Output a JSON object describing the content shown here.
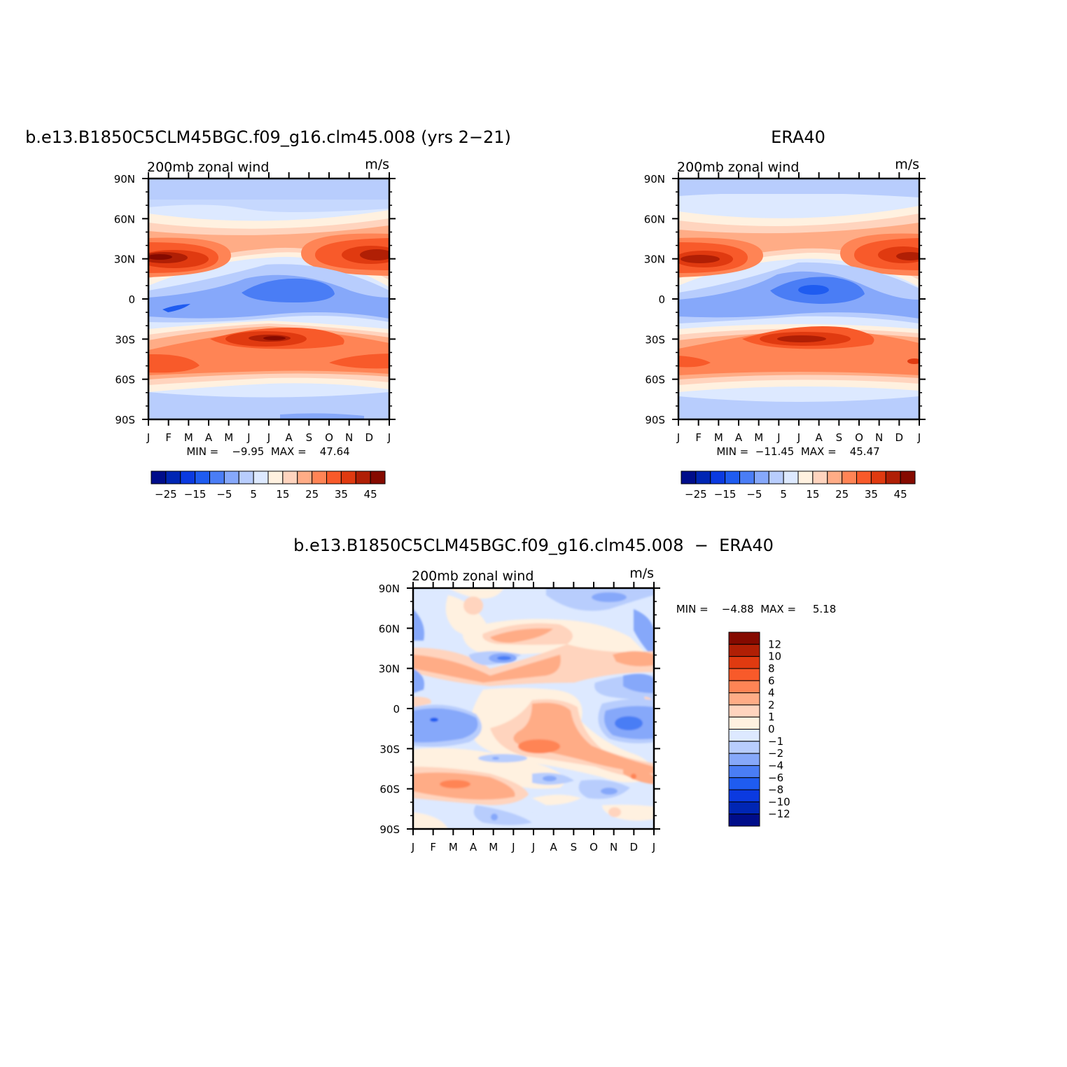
{
  "chart_data": [
    {
      "type": "heatmap",
      "title": "b.e13.B1850C5CLM45BGC.f09_g16.clm45.008 (yrs 2−21)",
      "subtitle_left": "200mb  zonal  wind",
      "subtitle_right": "m/s",
      "x_ticks": [
        "J",
        "F",
        "M",
        "A",
        "M",
        "J",
        "J",
        "A",
        "S",
        "O",
        "N",
        "D",
        "J"
      ],
      "y_ticks": [
        "90N",
        "60N",
        "30N",
        "0",
        "30S",
        "60S",
        "90S"
      ],
      "ylim": [
        -90,
        90
      ],
      "stats_text": "MIN =    −9.95  MAX =    47.64",
      "min": -9.95,
      "max": 47.64,
      "colorbar": {
        "orientation": "horizontal",
        "labels": [
          "−25",
          "−15",
          "−5",
          "5",
          "15",
          "25",
          "35",
          "45"
        ],
        "colors": [
          "#000d8a",
          "#0026b4",
          "#0b3ae0",
          "#1f5cf0",
          "#4a7df5",
          "#86a8fa",
          "#b8cdfd",
          "#dde9ff",
          "#fff1e0",
          "#ffd4be",
          "#ffac86",
          "#ff8455",
          "#f85a2a",
          "#e03a10",
          "#b01f05",
          "#850a00"
        ]
      },
      "features": [
        {
          "kind": "subtropical-jet",
          "hemisphere": "N",
          "months": [
            "J",
            "F",
            "M",
            "D"
          ],
          "lat": 30,
          "peak": 47.64
        },
        {
          "kind": "subtropical-jet",
          "hemisphere": "S",
          "months": [
            "J",
            "J",
            "A"
          ],
          "lat": -30,
          "peak": 45
        },
        {
          "kind": "tropical-easterlies",
          "months": [
            "J",
            "J",
            "A"
          ],
          "lat": 5,
          "min": -9.95
        }
      ]
    },
    {
      "type": "heatmap",
      "title": "ERA40",
      "subtitle_left": "200mb  zonal  wind",
      "subtitle_right": "m/s",
      "x_ticks": [
        "J",
        "F",
        "M",
        "A",
        "M",
        "J",
        "J",
        "A",
        "S",
        "O",
        "N",
        "D",
        "J"
      ],
      "y_ticks": [
        "90N",
        "60N",
        "30N",
        "0",
        "30S",
        "60S",
        "90S"
      ],
      "ylim": [
        -90,
        90
      ],
      "stats_text": "MIN =  −11.45  MAX =    45.47",
      "min": -11.45,
      "max": 45.47,
      "colorbar": {
        "orientation": "horizontal",
        "labels": [
          "−25",
          "−15",
          "−5",
          "5",
          "15",
          "25",
          "35",
          "45"
        ],
        "colors": [
          "#000d8a",
          "#0026b4",
          "#0b3ae0",
          "#1f5cf0",
          "#4a7df5",
          "#86a8fa",
          "#b8cdfd",
          "#dde9ff",
          "#fff1e0",
          "#ffd4be",
          "#ffac86",
          "#ff8455",
          "#f85a2a",
          "#e03a10",
          "#b01f05",
          "#850a00"
        ]
      }
    },
    {
      "type": "heatmap",
      "title": "b.e13.B1850C5CLM45BGC.f09_g16.clm45.008  −  ERA40",
      "subtitle_left": "200mb  zonal  wind",
      "subtitle_right": "m/s",
      "x_ticks": [
        "J",
        "F",
        "M",
        "A",
        "M",
        "J",
        "J",
        "A",
        "S",
        "O",
        "N",
        "D",
        "J"
      ],
      "y_ticks": [
        "90N",
        "60N",
        "30N",
        "0",
        "30S",
        "60S",
        "90S"
      ],
      "ylim": [
        -90,
        90
      ],
      "stats_text": "MIN =    −4.88  MAX =     5.18",
      "min": -4.88,
      "max": 5.18,
      "colorbar": {
        "orientation": "vertical",
        "labels": [
          "12",
          "10",
          "8",
          "6",
          "4",
          "2",
          "1",
          "0",
          "−1",
          "−2",
          "−4",
          "−6",
          "−8",
          "−10",
          "−12"
        ],
        "colors": [
          "#850a00",
          "#b01f05",
          "#e03a10",
          "#f85a2a",
          "#ff8455",
          "#ffac86",
          "#ffd4be",
          "#fff1e0",
          "#dde9ff",
          "#b8cdfd",
          "#86a8fa",
          "#4a7df5",
          "#1f5cf0",
          "#0b3ae0",
          "#0026b4",
          "#000d8a"
        ]
      }
    }
  ]
}
